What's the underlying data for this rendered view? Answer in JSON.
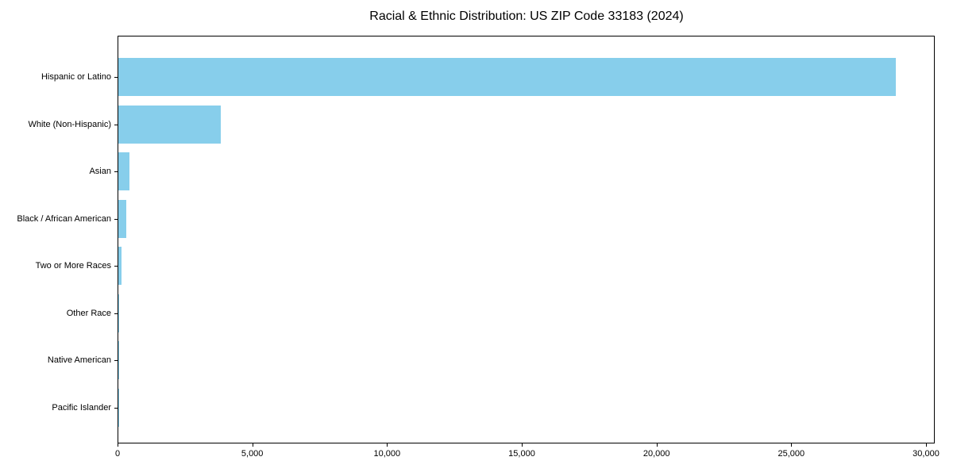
{
  "chart_data": {
    "type": "bar",
    "orientation": "horizontal",
    "title": "Racial & Ethnic Distribution: US ZIP Code 33183 (2024)",
    "categories": [
      "Hispanic or Latino",
      "White (Non-Hispanic)",
      "Asian",
      "Black / African American",
      "Two or More Races",
      "Other Race",
      "Native American",
      "Pacific Islander"
    ],
    "values": [
      28900,
      3800,
      410,
      300,
      120,
      30,
      10,
      5
    ],
    "bar_color": "#87CEEB",
    "xlabel": "",
    "ylabel": "",
    "xlim": [
      0,
      30324
    ],
    "x_ticks": [
      0,
      5000,
      10000,
      15000,
      20000,
      25000,
      30000
    ],
    "x_tick_labels": [
      "0",
      "5,000",
      "10,000",
      "15,000",
      "20,000",
      "25,000",
      "30,000"
    ],
    "grid": false,
    "legend": "none"
  }
}
